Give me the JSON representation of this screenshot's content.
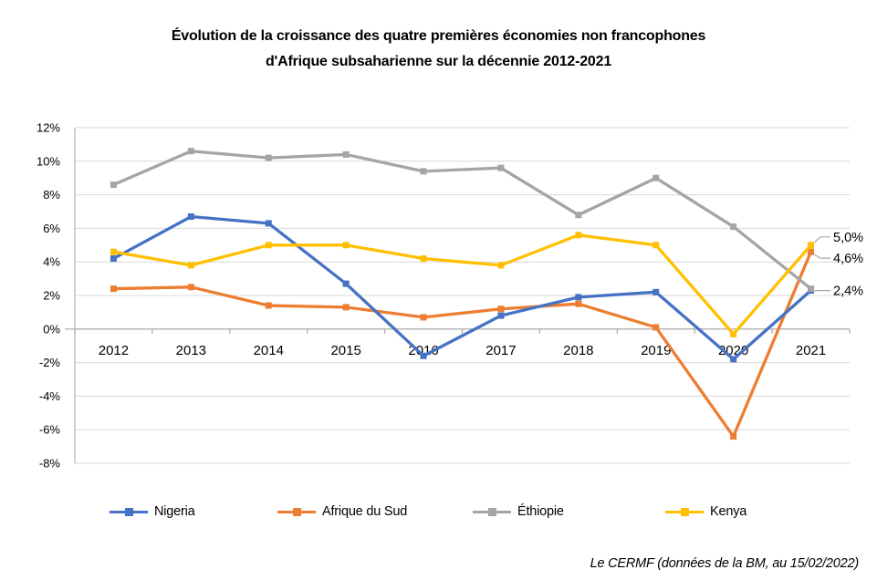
{
  "title": {
    "line1": "Évolution de la croissance des quatre premières économies non francophones",
    "line2": "d'Afrique subsaharienne sur la décennie 2012-2021"
  },
  "footer": {
    "source_note": "Le CERMF (données de la BM, au 15/02/2022)"
  },
  "chart_data": {
    "type": "line",
    "title": "Évolution de la croissance des quatre premières économies non francophones d'Afrique subsaharienne sur la décennie 2012-2021",
    "categories": [
      "2012",
      "2013",
      "2014",
      "2015",
      "2016",
      "2017",
      "2018",
      "2019",
      "2020",
      "2021"
    ],
    "series": [
      {
        "name": "Nigeria",
        "color": "#4472C4",
        "values": [
          4.2,
          6.7,
          6.3,
          2.7,
          -1.6,
          0.8,
          1.9,
          2.2,
          -1.8,
          2.3
        ]
      },
      {
        "name": "Afrique du Sud",
        "color": "#ED7D31",
        "values": [
          2.4,
          2.5,
          1.4,
          1.3,
          0.7,
          1.2,
          1.5,
          0.1,
          -6.4,
          4.6
        ]
      },
      {
        "name": "Éthiopie",
        "color": "#A5A5A5",
        "values": [
          8.6,
          10.6,
          10.2,
          10.4,
          9.4,
          9.6,
          6.8,
          9.0,
          6.1,
          2.4
        ]
      },
      {
        "name": "Kenya",
        "color": "#FFC000",
        "values": [
          4.6,
          3.8,
          5.0,
          5.0,
          4.2,
          3.8,
          5.6,
          5.0,
          -0.3,
          5.0
        ]
      }
    ],
    "ylim": [
      -8,
      12
    ],
    "ytick_step": 2,
    "ytick_labels": [
      "12%",
      "10%",
      "8%",
      "6%",
      "4%",
      "2%",
      "0%",
      "-2%",
      "-4%",
      "-6%",
      "-8%"
    ],
    "xlabel": "",
    "ylabel": "",
    "grid": true,
    "legend_position": "bottom",
    "end_labels": [
      {
        "series": "Kenya",
        "text": "5,0%"
      },
      {
        "series": "Afrique du Sud",
        "text": "4,6%"
      },
      {
        "series": "Éthiopie",
        "text": "2,4%"
      }
    ],
    "colors": {
      "gridline": "#D9D9D9",
      "axis": "#A6A6A6",
      "tick_text": "#000000"
    }
  }
}
